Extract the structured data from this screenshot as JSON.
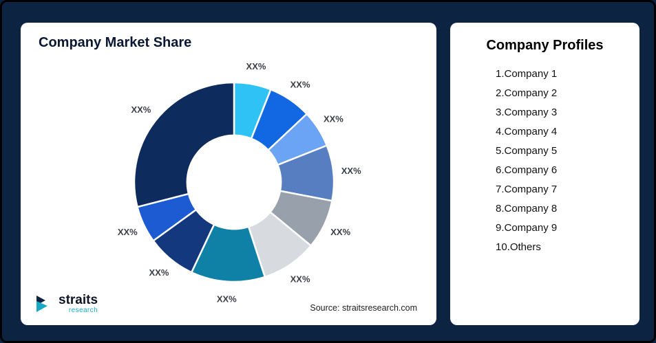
{
  "left_card": {
    "title": "Company Market Share",
    "source": "Source: straitsresearch.com",
    "logo": {
      "main": "straits",
      "sub": "research",
      "accent_color": "#18a8c6",
      "dark_color": "#101426"
    }
  },
  "right_card": {
    "title": "Company Profiles",
    "items": [
      "1.Company 1",
      "2.Company 2",
      "3.Company 3",
      "4.Company 4",
      "5.Company 5",
      "6.Company 6",
      "7.Company 7",
      "8.Company 8",
      "9.Company 9",
      "10.Others"
    ]
  },
  "chart_data": {
    "type": "pie",
    "subtype": "donut",
    "title": "Company Market Share",
    "legend_position": "none",
    "start_angle_deg": -90,
    "direction": "clockwise",
    "inner_radius_ratio": 0.47,
    "segments": [
      {
        "name": "Company 1",
        "label": "XX%",
        "value": 6,
        "color": "#2ec2f5"
      },
      {
        "name": "Company 2",
        "label": "XX%",
        "value": 7,
        "color": "#1268e3"
      },
      {
        "name": "Company 3",
        "label": "XX%",
        "value": 6,
        "color": "#6ba4f5"
      },
      {
        "name": "Company 4",
        "label": "XX%",
        "value": 9,
        "color": "#567ec0"
      },
      {
        "name": "Company 5",
        "label": "XX%",
        "value": 8,
        "color": "#98a0ab"
      },
      {
        "name": "Company 6",
        "label": "XX%",
        "value": 9,
        "color": "#d7dbdf"
      },
      {
        "name": "Company 7",
        "label": "XX%",
        "value": 12,
        "color": "#0f80a6"
      },
      {
        "name": "Company 8",
        "label": "XX%",
        "value": 8,
        "color": "#14387d"
      },
      {
        "name": "Company 9",
        "label": "XX%",
        "value": 6,
        "color": "#1d5bd2"
      },
      {
        "name": "Others",
        "label": "XX%",
        "value": 29,
        "color": "#0d2b5c"
      }
    ],
    "label_color": "#3a3f47",
    "slice_stroke": "#ffffff"
  }
}
